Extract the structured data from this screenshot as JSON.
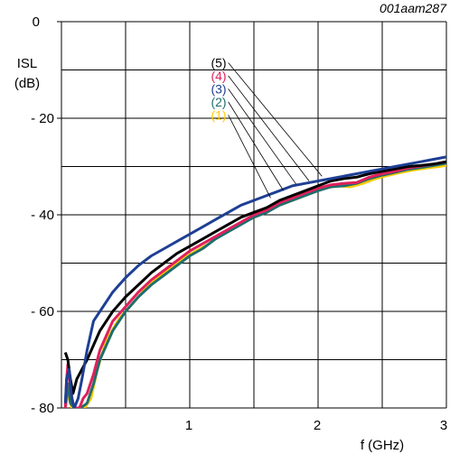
{
  "chart_data": {
    "type": "line",
    "reference_code": "001aam287",
    "ylabel": "ISL",
    "yunit": "(dB)",
    "xlabel": "f (GHz)",
    "xlim": [
      0,
      3
    ],
    "ylim": [
      -80,
      0
    ],
    "x_ticks": [
      1,
      2,
      3
    ],
    "x_tick_labels": [
      "1",
      "2",
      "3"
    ],
    "y_ticks": [
      0,
      -20,
      -40,
      -60,
      -80
    ],
    "y_tick_labels": [
      "0",
      "- 20",
      "- 40",
      "- 60",
      "- 80"
    ],
    "grid": true,
    "grid_x": [
      0,
      0.5,
      1,
      1.5,
      2,
      2.5,
      3
    ],
    "grid_y": [
      0,
      -10,
      -20,
      -30,
      -40,
      -50,
      -60,
      -70,
      -80
    ],
    "callout_anchor": [
      1.3,
      -16.5
    ],
    "series": [
      {
        "name": "(5)",
        "color": "#000000",
        "points": [
          [
            0.03,
            -68.5
          ],
          [
            0.05,
            -70
          ],
          [
            0.07,
            -74
          ],
          [
            0.09,
            -77
          ],
          [
            0.12,
            -74
          ],
          [
            0.16,
            -72
          ],
          [
            0.2,
            -70
          ],
          [
            0.3,
            -64
          ],
          [
            0.4,
            -60
          ],
          [
            0.5,
            -57
          ],
          [
            0.6,
            -54.5
          ],
          [
            0.7,
            -52
          ],
          [
            0.8,
            -50
          ],
          [
            0.9,
            -48
          ],
          [
            1.0,
            -46.5
          ],
          [
            1.1,
            -45
          ],
          [
            1.2,
            -43.5
          ],
          [
            1.3,
            -42
          ],
          [
            1.4,
            -40.5
          ],
          [
            1.5,
            -39.5
          ],
          [
            1.6,
            -38.5
          ],
          [
            1.7,
            -37
          ],
          [
            1.8,
            -36
          ],
          [
            1.9,
            -35
          ],
          [
            2.0,
            -34
          ],
          [
            2.1,
            -33
          ],
          [
            2.2,
            -32.5
          ],
          [
            2.3,
            -32.2
          ],
          [
            2.4,
            -31.5
          ],
          [
            2.5,
            -31
          ],
          [
            2.6,
            -30.5
          ],
          [
            2.7,
            -30
          ],
          [
            2.8,
            -29.8
          ],
          [
            2.9,
            -29.5
          ],
          [
            3.0,
            -29
          ]
        ]
      },
      {
        "name": "(4)",
        "color": "#e0205a",
        "points": [
          [
            0.03,
            -80
          ],
          [
            0.04,
            -74
          ],
          [
            0.05,
            -71
          ],
          [
            0.07,
            -76
          ],
          [
            0.09,
            -79
          ],
          [
            0.11,
            -80
          ],
          [
            0.14,
            -80
          ],
          [
            0.17,
            -78
          ],
          [
            0.2,
            -77
          ],
          [
            0.25,
            -73
          ],
          [
            0.3,
            -68
          ],
          [
            0.4,
            -62
          ],
          [
            0.5,
            -59
          ],
          [
            0.6,
            -56
          ],
          [
            0.7,
            -53.5
          ],
          [
            0.8,
            -51.5
          ],
          [
            0.9,
            -49.5
          ],
          [
            1.0,
            -47.5
          ],
          [
            1.1,
            -46
          ],
          [
            1.2,
            -44.5
          ],
          [
            1.3,
            -43
          ],
          [
            1.4,
            -41.5
          ],
          [
            1.5,
            -40
          ],
          [
            1.6,
            -39
          ],
          [
            1.7,
            -37.5
          ],
          [
            1.8,
            -36.5
          ],
          [
            1.9,
            -35.5
          ],
          [
            2.0,
            -34.5
          ],
          [
            2.1,
            -33.8
          ],
          [
            2.2,
            -33.5
          ],
          [
            2.3,
            -33.3
          ],
          [
            2.4,
            -32.2
          ],
          [
            2.5,
            -31.5
          ],
          [
            2.6,
            -31
          ],
          [
            2.7,
            -30.3
          ],
          [
            2.8,
            -29.9
          ],
          [
            2.9,
            -29.5
          ],
          [
            3.0,
            -29
          ]
        ]
      },
      {
        "name": "(3)",
        "color": "#1e3f94",
        "points": [
          [
            0.03,
            -79
          ],
          [
            0.04,
            -74
          ],
          [
            0.06,
            -72
          ],
          [
            0.08,
            -78
          ],
          [
            0.1,
            -80
          ],
          [
            0.13,
            -78
          ],
          [
            0.16,
            -74
          ],
          [
            0.2,
            -68
          ],
          [
            0.25,
            -62
          ],
          [
            0.3,
            -60
          ],
          [
            0.4,
            -56
          ],
          [
            0.5,
            -53
          ],
          [
            0.6,
            -50.5
          ],
          [
            0.7,
            -48.5
          ],
          [
            0.8,
            -47
          ],
          [
            0.9,
            -45.5
          ],
          [
            1.0,
            -44
          ],
          [
            1.1,
            -42.5
          ],
          [
            1.2,
            -41
          ],
          [
            1.3,
            -39.5
          ],
          [
            1.4,
            -38
          ],
          [
            1.5,
            -37
          ],
          [
            1.6,
            -36
          ],
          [
            1.7,
            -35
          ],
          [
            1.8,
            -34
          ],
          [
            1.9,
            -33.5
          ],
          [
            2.0,
            -33
          ],
          [
            2.1,
            -32.5
          ],
          [
            2.2,
            -32
          ],
          [
            2.3,
            -31.5
          ],
          [
            2.4,
            -31
          ],
          [
            2.5,
            -30.5
          ],
          [
            2.6,
            -30
          ],
          [
            2.7,
            -29.5
          ],
          [
            2.8,
            -29
          ],
          [
            2.9,
            -28.5
          ],
          [
            3.0,
            -28
          ]
        ]
      },
      {
        "name": "(2)",
        "color": "#1f6e6e",
        "points": [
          [
            0.03,
            -80
          ],
          [
            0.05,
            -75
          ],
          [
            0.07,
            -79
          ],
          [
            0.1,
            -80
          ],
          [
            0.15,
            -80
          ],
          [
            0.2,
            -79
          ],
          [
            0.25,
            -75
          ],
          [
            0.3,
            -70
          ],
          [
            0.4,
            -64
          ],
          [
            0.5,
            -60
          ],
          [
            0.6,
            -57
          ],
          [
            0.7,
            -54.5
          ],
          [
            0.8,
            -52.5
          ],
          [
            0.9,
            -50.5
          ],
          [
            1.0,
            -48.5
          ],
          [
            1.1,
            -47
          ],
          [
            1.2,
            -45
          ],
          [
            1.3,
            -43.5
          ],
          [
            1.4,
            -42
          ],
          [
            1.5,
            -40.5
          ],
          [
            1.6,
            -39.5
          ],
          [
            1.7,
            -38
          ],
          [
            1.8,
            -37
          ],
          [
            1.9,
            -36
          ],
          [
            2.0,
            -35
          ],
          [
            2.1,
            -34.2
          ],
          [
            2.2,
            -34
          ],
          [
            2.3,
            -33.5
          ],
          [
            2.4,
            -32.5
          ],
          [
            2.5,
            -31.8
          ],
          [
            2.6,
            -31.2
          ],
          [
            2.7,
            -30.6
          ],
          [
            2.8,
            -30.2
          ],
          [
            2.9,
            -29.8
          ],
          [
            3.0,
            -29.3
          ]
        ]
      },
      {
        "name": "(1)",
        "color": "#ffcc00",
        "points": [
          [
            0.03,
            -80
          ],
          [
            0.05,
            -77
          ],
          [
            0.08,
            -80
          ],
          [
            0.12,
            -80
          ],
          [
            0.18,
            -80
          ],
          [
            0.23,
            -78
          ],
          [
            0.28,
            -72
          ],
          [
            0.35,
            -66
          ],
          [
            0.45,
            -61.5
          ],
          [
            0.55,
            -58.5
          ],
          [
            0.65,
            -55.5
          ],
          [
            0.75,
            -53
          ],
          [
            0.85,
            -51
          ],
          [
            0.95,
            -49
          ],
          [
            1.05,
            -47.5
          ],
          [
            1.15,
            -46
          ],
          [
            1.25,
            -44
          ],
          [
            1.35,
            -42.5
          ],
          [
            1.45,
            -41
          ],
          [
            1.55,
            -40
          ],
          [
            1.65,
            -38.5
          ],
          [
            1.75,
            -37.5
          ],
          [
            1.85,
            -36.5
          ],
          [
            1.95,
            -35.5
          ],
          [
            2.05,
            -34.5
          ],
          [
            2.15,
            -34
          ],
          [
            2.25,
            -34.2
          ],
          [
            2.35,
            -33.5
          ],
          [
            2.45,
            -32.5
          ],
          [
            2.55,
            -31.8
          ],
          [
            2.65,
            -31.2
          ],
          [
            2.75,
            -30.7
          ],
          [
            2.85,
            -30.3
          ],
          [
            3.0,
            -29.8
          ]
        ]
      }
    ],
    "labels": [
      {
        "text": "(5)",
        "color": "#000000",
        "label_y": -8.5,
        "tip": [
          2.03,
          -32.0
        ]
      },
      {
        "text": "(4)",
        "color": "#e0205a",
        "label_y": -11.2,
        "tip": [
          1.93,
          -33.0
        ]
      },
      {
        "text": "(3)",
        "color": "#1e3f94",
        "label_y": -13.9,
        "tip": [
          1.83,
          -33.7
        ]
      },
      {
        "text": "(2)",
        "color": "#1f6e6e",
        "label_y": -16.6,
        "tip": [
          1.73,
          -35.0
        ]
      },
      {
        "text": "(1)",
        "color": "#ffcc00",
        "label_y": -19.3,
        "tip": [
          1.63,
          -36.5
        ]
      }
    ]
  }
}
